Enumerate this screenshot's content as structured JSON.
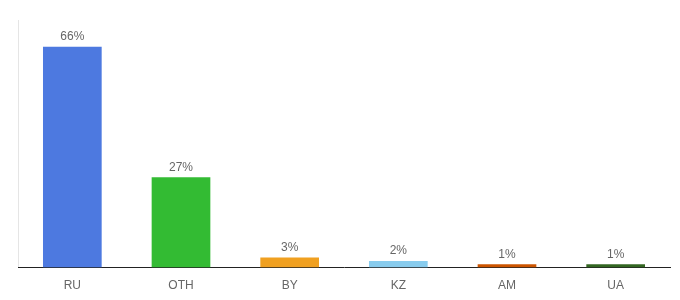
{
  "chart_data": {
    "type": "bar",
    "categories": [
      "RU",
      "OTH",
      "BY",
      "KZ",
      "AM",
      "UA"
    ],
    "values": [
      66,
      27,
      3,
      2,
      1,
      1
    ],
    "value_labels": [
      "66%",
      "27%",
      "3%",
      "2%",
      "1%",
      "1%"
    ],
    "colors": [
      "#4d79e0",
      "#33bb33",
      "#f0a020",
      "#88ccee",
      "#cc5500",
      "#336622"
    ],
    "ylim": [
      0,
      74
    ],
    "tick_labels": "x",
    "grid": false,
    "data_labels": true
  }
}
